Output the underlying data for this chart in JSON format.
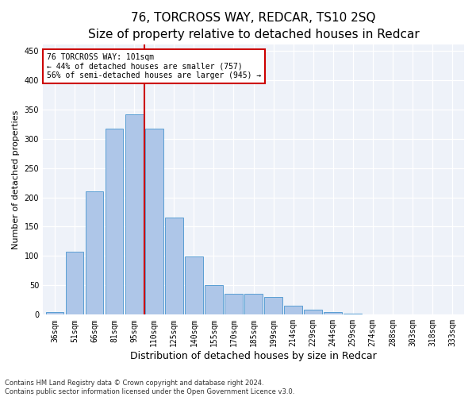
{
  "title": "76, TORCROSS WAY, REDCAR, TS10 2SQ",
  "subtitle": "Size of property relative to detached houses in Redcar",
  "xlabel": "Distribution of detached houses by size in Redcar",
  "ylabel": "Number of detached properties",
  "categories": [
    "36sqm",
    "51sqm",
    "66sqm",
    "81sqm",
    "95sqm",
    "110sqm",
    "125sqm",
    "140sqm",
    "155sqm",
    "170sqm",
    "185sqm",
    "199sqm",
    "214sqm",
    "229sqm",
    "244sqm",
    "259sqm",
    "274sqm",
    "288sqm",
    "303sqm",
    "318sqm",
    "333sqm"
  ],
  "values": [
    5,
    107,
    210,
    317,
    342,
    317,
    165,
    99,
    50,
    35,
    35,
    30,
    15,
    8,
    5,
    2,
    1,
    1,
    1,
    1,
    1
  ],
  "bar_color": "#aec6e8",
  "bar_edge_color": "#5a9fd4",
  "vline_x": 4.5,
  "vline_color": "#cc0000",
  "annotation_line1": "76 TORCROSS WAY: 101sqm",
  "annotation_line2": "← 44% of detached houses are smaller (757)",
  "annotation_line3": "56% of semi-detached houses are larger (945) →",
  "annotation_box_color": "#ffffff",
  "annotation_box_edge": "#cc0000",
  "ylim": [
    0,
    460
  ],
  "footnote1": "Contains HM Land Registry data © Crown copyright and database right 2024.",
  "footnote2": "Contains public sector information licensed under the Open Government Licence v3.0.",
  "title_fontsize": 11,
  "ylabel_fontsize": 8,
  "xlabel_fontsize": 9,
  "tick_fontsize": 7,
  "annot_fontsize": 7,
  "footnote_fontsize": 6,
  "background_color": "#eef2f9"
}
